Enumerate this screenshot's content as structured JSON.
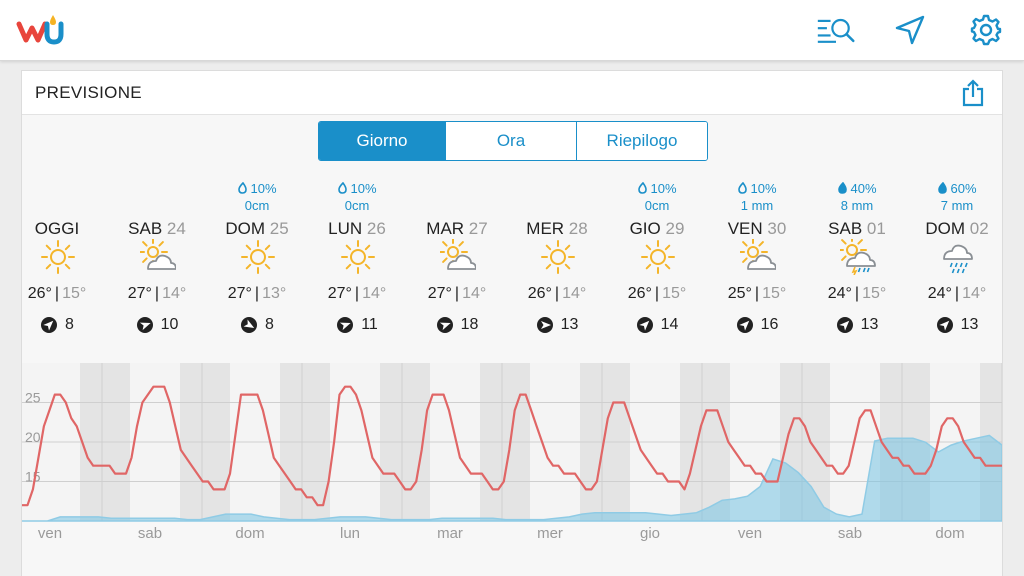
{
  "header": {
    "logo": "wu-logo",
    "icons": [
      "search-list-icon",
      "location-arrow-icon",
      "gear-icon"
    ]
  },
  "card": {
    "title": "PREVISIONE",
    "share_icon": "share-icon"
  },
  "tabs": [
    {
      "label": "Giorno",
      "active": true
    },
    {
      "label": "Ora",
      "active": false
    },
    {
      "label": "Riepilogo",
      "active": false
    }
  ],
  "days": [
    {
      "name": "OGGI",
      "num": "",
      "precip": "",
      "precip_amt": "",
      "icon": "sunny",
      "high": "26°",
      "low": "15°",
      "wind": "8",
      "wind_dir": 45
    },
    {
      "name": "SAB",
      "num": "24",
      "precip": "",
      "precip_amt": "",
      "icon": "partly-cloudy",
      "high": "27°",
      "low": "14°",
      "wind": "10",
      "wind_dir": 70
    },
    {
      "name": "DOM",
      "num": "25",
      "precip": "10%",
      "precip_amt": "0cm",
      "icon": "sunny",
      "high": "27°",
      "low": "13°",
      "wind": "8",
      "wind_dir": 120
    },
    {
      "name": "LUN",
      "num": "26",
      "precip": "10%",
      "precip_amt": "0cm",
      "icon": "sunny",
      "high": "27°",
      "low": "14°",
      "wind": "11",
      "wind_dir": 70
    },
    {
      "name": "MAR",
      "num": "27",
      "precip": "",
      "precip_amt": "",
      "icon": "partly-cloudy",
      "high": "27°",
      "low": "14°",
      "wind": "18",
      "wind_dir": 70
    },
    {
      "name": "MER",
      "num": "28",
      "precip": "",
      "precip_amt": "",
      "icon": "sunny",
      "high": "26°",
      "low": "14°",
      "wind": "13",
      "wind_dir": 90
    },
    {
      "name": "GIO",
      "num": "29",
      "precip": "10%",
      "precip_amt": "0cm",
      "icon": "sunny",
      "high": "26°",
      "low": "15°",
      "wind": "14",
      "wind_dir": 45
    },
    {
      "name": "VEN",
      "num": "30",
      "precip": "10%",
      "precip_amt": "1 mm",
      "icon": "partly-cloudy",
      "high": "25°",
      "low": "15°",
      "wind": "16",
      "wind_dir": 45
    },
    {
      "name": "SAB",
      "num": "01",
      "precip": "40%",
      "precip_amt": "8 mm",
      "icon": "thunder-rain",
      "high": "24°",
      "low": "15°",
      "wind": "13",
      "wind_dir": 45
    },
    {
      "name": "DOM",
      "num": "02",
      "precip": "60%",
      "precip_amt": "7 mm",
      "icon": "rain",
      "high": "24°",
      "low": "14°",
      "wind": "13",
      "wind_dir": 45
    }
  ],
  "chart_data": {
    "type": "line",
    "y_ticks": [
      "25",
      "20",
      "15"
    ],
    "x_labels": [
      "ven",
      "sab",
      "dom",
      "lun",
      "mar",
      "mer",
      "gio",
      "ven",
      "sab",
      "dom"
    ],
    "ylim": [
      10,
      30
    ],
    "grid": true,
    "series": [
      {
        "color": "#e06666",
        "values": [
          12,
          12,
          14,
          18,
          22,
          24,
          26,
          26,
          25,
          23,
          22,
          20,
          18,
          17,
          17,
          17,
          17,
          16,
          16,
          16,
          18,
          22,
          25,
          26,
          27,
          27,
          27,
          25,
          22,
          19,
          18,
          17,
          16,
          15,
          15,
          14,
          14,
          14,
          16,
          21,
          26,
          26,
          26,
          26,
          24,
          21,
          18,
          17,
          16,
          15,
          14,
          14,
          13,
          13,
          12,
          12,
          15,
          20,
          26,
          27,
          27,
          26,
          24,
          21,
          18,
          17,
          16,
          16,
          16,
          15,
          14,
          14,
          15,
          19,
          24,
          26,
          26,
          26,
          24,
          21,
          18,
          17,
          16,
          16,
          16,
          15,
          14,
          14,
          15,
          19,
          24,
          26,
          26,
          24,
          22,
          20,
          18,
          17,
          17,
          16,
          16,
          16,
          15,
          14,
          14,
          15,
          19,
          23,
          25,
          25,
          25,
          23,
          21,
          19,
          18,
          17,
          16,
          16,
          15,
          15,
          15,
          14,
          16,
          19,
          22,
          24,
          24,
          24,
          22,
          20,
          19,
          18,
          17,
          17,
          16,
          16,
          15,
          15,
          15,
          18,
          21,
          23,
          23,
          22,
          20,
          19,
          18,
          17,
          17,
          16,
          16,
          17,
          20,
          23,
          24,
          24,
          22,
          20,
          19,
          18,
          18,
          17,
          17,
          16,
          16,
          16,
          17,
          19,
          22,
          23,
          23,
          22,
          20,
          19,
          18,
          18,
          17,
          17,
          17,
          17
        ]
      },
      {
        "color": "#9fd3ea",
        "values": [
          0,
          0,
          0,
          0.3,
          0.3,
          0.3,
          0.3,
          0.2,
          0.2,
          0.2,
          0.2,
          0.2,
          0.2,
          0.1,
          0.1,
          0.3,
          0.5,
          0.5,
          0.5,
          0.3,
          0.2,
          0.1,
          0.1,
          0.1,
          0.2,
          0.3,
          0.3,
          0.3,
          0.2,
          0.1,
          0.1,
          0.1,
          0.1,
          0.2,
          0.2,
          0.2,
          0.2,
          0.2,
          0.1,
          0.1,
          0.1,
          0.1,
          0.2,
          0.3,
          0.5,
          0.6,
          0.6,
          0.6,
          0.6,
          0.6,
          0.5,
          0.4,
          0.5,
          0.6,
          1,
          1.5,
          1.6,
          1.8,
          2.5,
          4.5,
          4.2,
          3.5,
          2.5,
          1,
          0.5,
          0.3,
          0.5,
          5.8,
          6,
          6,
          6,
          5.7,
          5,
          5.5,
          5.8,
          6,
          6.2,
          5.5
        ]
      }
    ]
  }
}
